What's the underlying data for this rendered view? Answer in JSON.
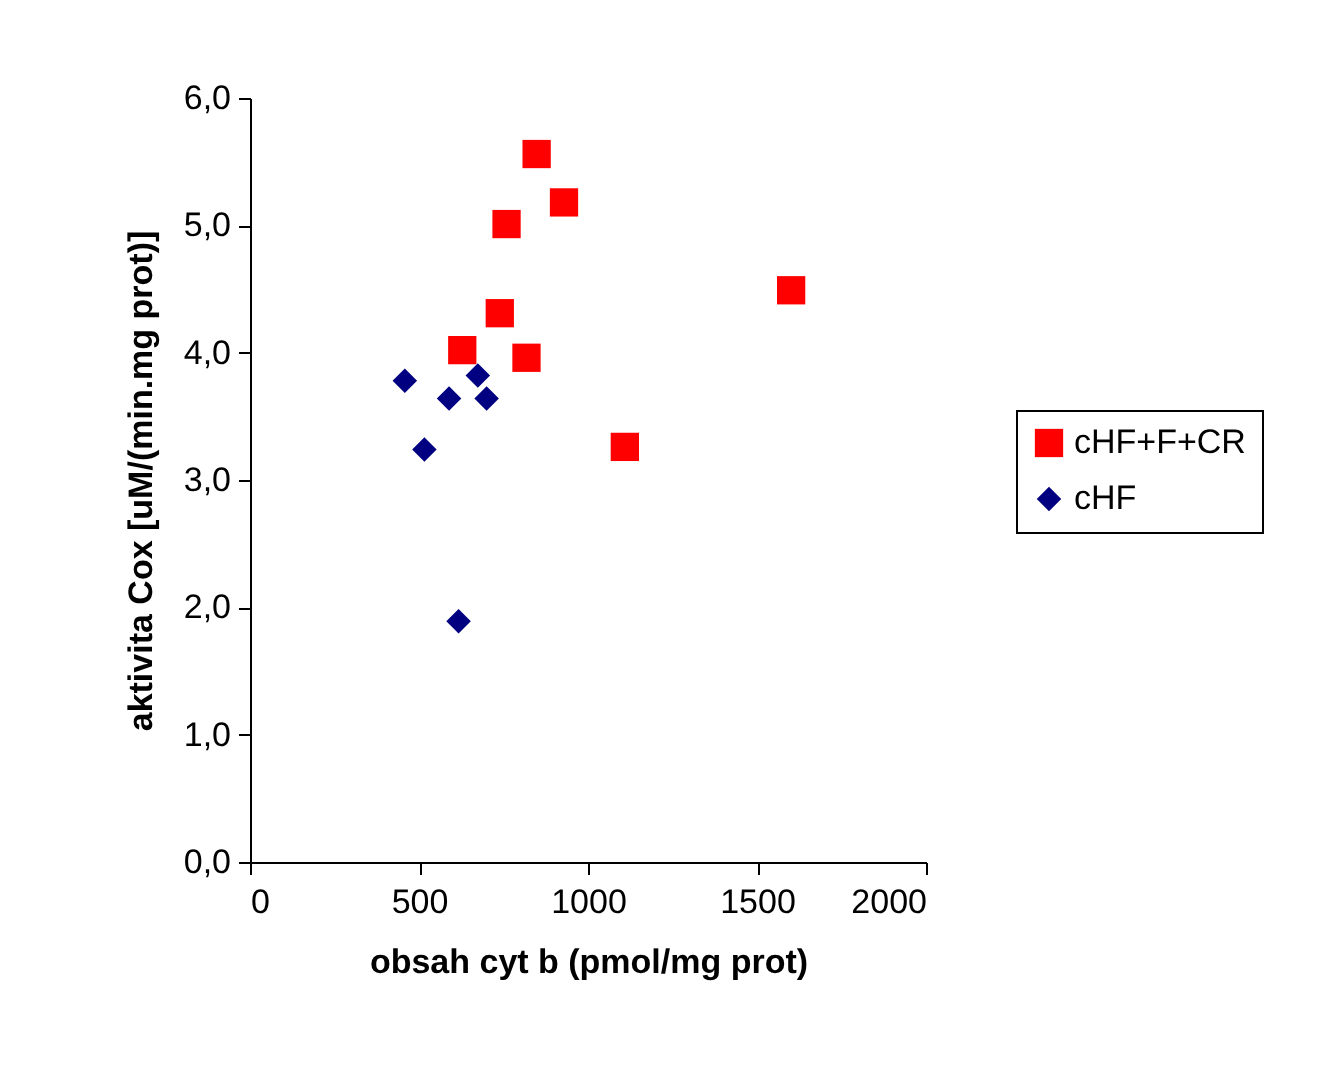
{
  "chart_data": {
    "type": "scatter",
    "xlabel": "obsah cyt b (pmol/mg prot)",
    "ylabel": "aktivita Cox [uM/(min.mg prot)]",
    "xlim": [
      0,
      2000
    ],
    "xticks": [
      0,
      500,
      1000,
      1500,
      2000
    ],
    "ylim": [
      0,
      6
    ],
    "yticks": [
      {
        "value": 0,
        "label": "0,0"
      },
      {
        "value": 1,
        "label": "1,0"
      },
      {
        "value": 2,
        "label": "2,0"
      },
      {
        "value": 3,
        "label": "3,0"
      },
      {
        "value": 4,
        "label": "4,0"
      },
      {
        "value": 5,
        "label": "5,0"
      },
      {
        "value": 6,
        "label": "6,0"
      }
    ],
    "grid": false,
    "legend": "right",
    "series": [
      {
        "name": "cHF+F+CR",
        "color": "#ff0000",
        "marker": "square",
        "x": [
          848,
          929,
          759,
          739,
          628,
          818,
          1109,
          1601
        ],
        "values": [
          5.56,
          5.18,
          5.01,
          4.31,
          4.02,
          3.96,
          3.26,
          4.49
        ]
      },
      {
        "name": "cHF",
        "color": "#000080",
        "marker": "diamond",
        "x": [
          458,
          516,
          589,
          674,
          700,
          617
        ],
        "values": [
          3.78,
          3.24,
          3.64,
          3.82,
          3.64,
          1.89
        ]
      }
    ]
  }
}
